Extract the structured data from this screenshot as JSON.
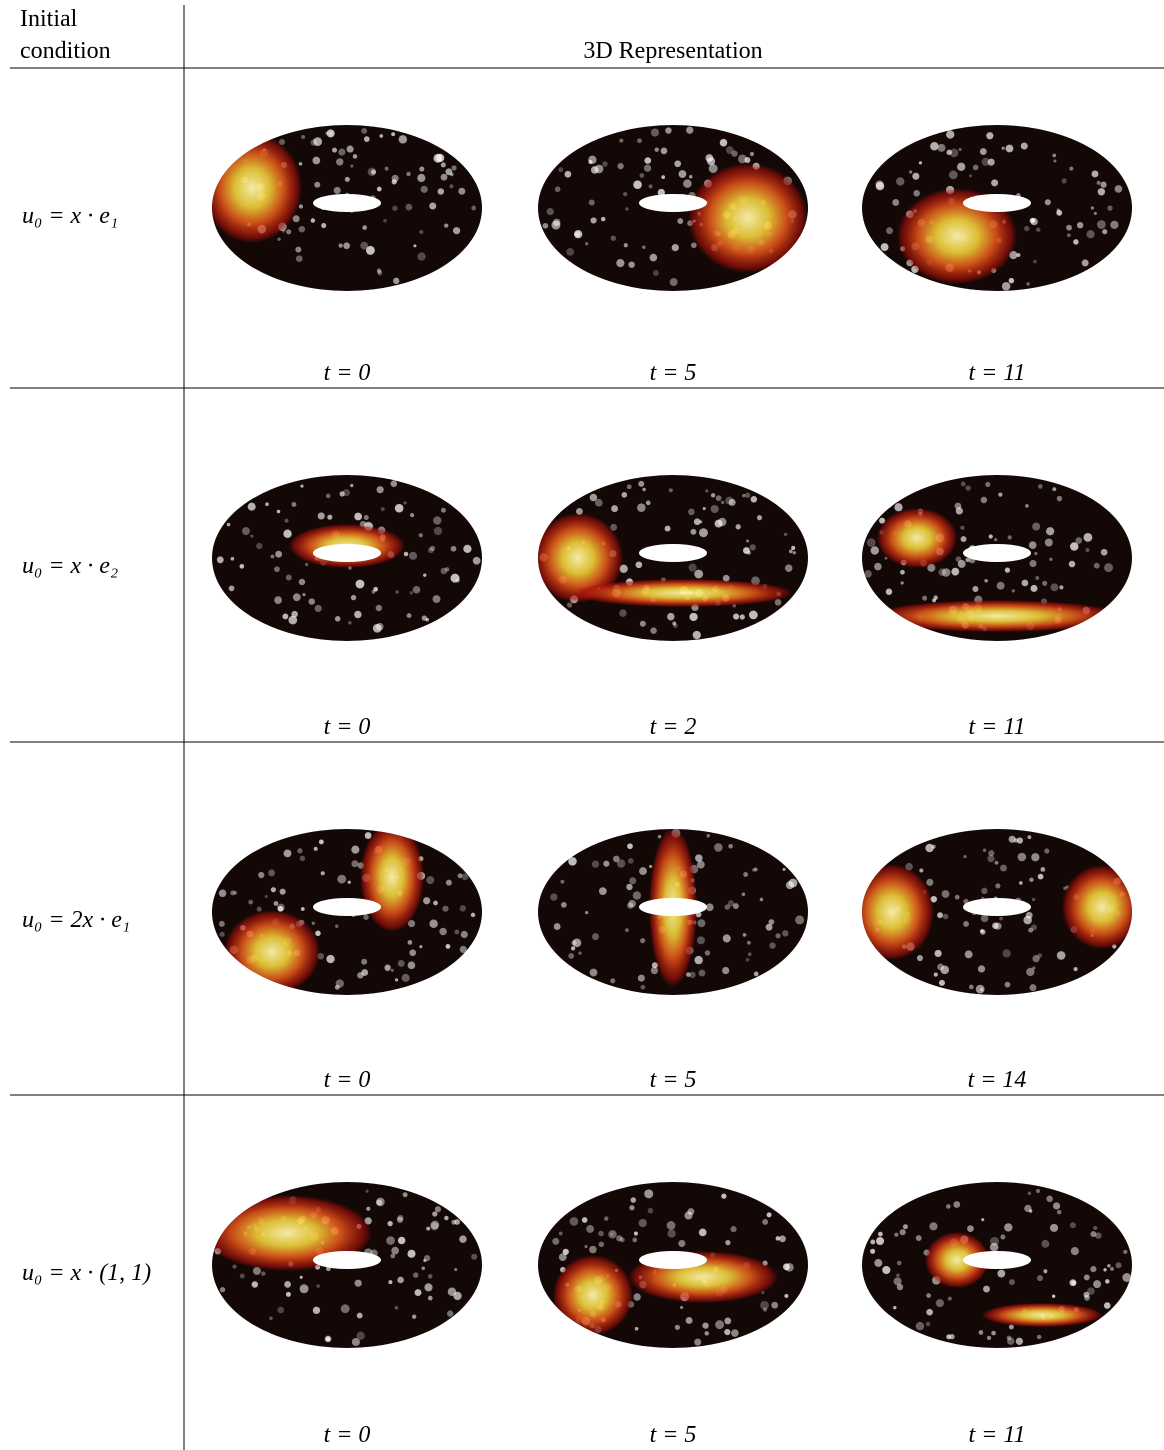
{
  "header": {
    "initial_condition": [
      "Initial",
      "condition"
    ],
    "representation": "3D Representation"
  },
  "rows": [
    {
      "condition": "u₀ = x · e₁",
      "times": [
        "t = 0",
        "t = 5",
        "t = 11"
      ]
    },
    {
      "condition": "u₀ = x · e₂",
      "times": [
        "t = 0",
        "t = 2",
        "t = 11"
      ]
    },
    {
      "condition": "u₀ = 2x · e₁",
      "times": [
        "t = 0",
        "t = 5",
        "t = 14"
      ]
    },
    {
      "condition": "u₀ = x · (1, 1)",
      "times": [
        "t = 0",
        "t = 5",
        "t = 11"
      ]
    }
  ]
}
